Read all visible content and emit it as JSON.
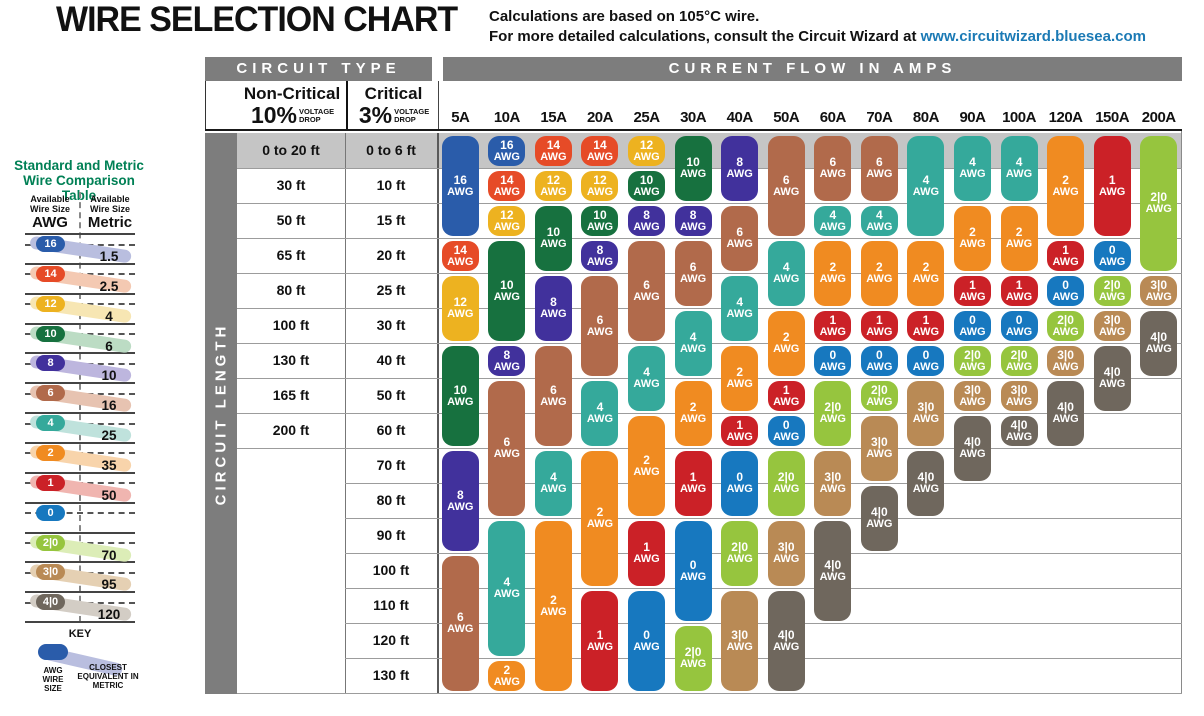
{
  "header": {
    "title": "WIRE SELECTION CHART",
    "note_line1": "Calculations are based on 105°C wire.",
    "note_line2_prefix": "For more detailed calculations, consult the Circuit Wizard at ",
    "note_link": "www.circuitwizard.bluesea.com"
  },
  "table_headers": {
    "circuit_type": "CIRCUIT TYPE",
    "current_flow": "CURRENT FLOW IN AMPS",
    "circuit_length": "CIRCUIT LENGTH",
    "non_critical": {
      "name": "Non-Critical",
      "pct": "10%",
      "sub": "VOLTAGE DROP"
    },
    "critical": {
      "name": "Critical",
      "pct": "3%",
      "sub": "VOLTAGE DROP"
    }
  },
  "chart_data": {
    "type": "table",
    "title": "WIRE SELECTION CHART",
    "unit_suffix": "AWG",
    "amp_columns": [
      "5A",
      "10A",
      "15A",
      "20A",
      "25A",
      "30A",
      "40A",
      "50A",
      "60A",
      "70A",
      "80A",
      "90A",
      "100A",
      "120A",
      "150A",
      "200A"
    ],
    "row_labels_non_critical_10pct": [
      "0 to 20 ft",
      "30 ft",
      "50 ft",
      "65 ft",
      "80 ft",
      "100 ft",
      "130 ft",
      "165 ft",
      "200 ft"
    ],
    "row_labels_critical_3pct": [
      "0 to 6 ft",
      "10 ft",
      "15 ft",
      "20 ft",
      "25 ft",
      "30 ft",
      "40 ft",
      "50 ft",
      "60 ft",
      "70 ft",
      "80 ft",
      "90 ft",
      "100 ft",
      "110 ft",
      "120 ft",
      "130 ft"
    ],
    "columns": [
      {
        "amps": "5A",
        "segments": [
          {
            "awg": "16",
            "rows": [
              1,
              3
            ]
          },
          {
            "awg": "14",
            "rows": [
              4,
              4
            ]
          },
          {
            "awg": "12",
            "rows": [
              5,
              6
            ]
          },
          {
            "awg": "10",
            "rows": [
              7,
              9
            ]
          },
          {
            "awg": "8",
            "rows": [
              10,
              12
            ]
          },
          {
            "awg": "6",
            "rows": [
              13,
              16
            ]
          }
        ]
      },
      {
        "amps": "10A",
        "segments": [
          {
            "awg": "16",
            "rows": [
              1,
              1
            ]
          },
          {
            "awg": "14",
            "rows": [
              2,
              2
            ]
          },
          {
            "awg": "12",
            "rows": [
              3,
              3
            ]
          },
          {
            "awg": "10",
            "rows": [
              4,
              6
            ]
          },
          {
            "awg": "8",
            "rows": [
              7,
              7
            ]
          },
          {
            "awg": "6",
            "rows": [
              8,
              11
            ]
          },
          {
            "awg": "4",
            "rows": [
              12,
              15
            ]
          },
          {
            "awg": "2",
            "rows": [
              16,
              16
            ]
          }
        ]
      },
      {
        "amps": "15A",
        "segments": [
          {
            "awg": "14",
            "rows": [
              1,
              1
            ]
          },
          {
            "awg": "12",
            "rows": [
              2,
              2
            ]
          },
          {
            "awg": "10",
            "rows": [
              3,
              4
            ]
          },
          {
            "awg": "8",
            "rows": [
              5,
              6
            ]
          },
          {
            "awg": "6",
            "rows": [
              7,
              9
            ]
          },
          {
            "awg": "4",
            "rows": [
              10,
              11
            ]
          },
          {
            "awg": "2",
            "rows": [
              12,
              16
            ]
          }
        ]
      },
      {
        "amps": "20A",
        "segments": [
          {
            "awg": "14",
            "rows": [
              1,
              1
            ]
          },
          {
            "awg": "12",
            "rows": [
              2,
              2
            ]
          },
          {
            "awg": "10",
            "rows": [
              3,
              3
            ]
          },
          {
            "awg": "8",
            "rows": [
              4,
              4
            ]
          },
          {
            "awg": "6",
            "rows": [
              5,
              7
            ]
          },
          {
            "awg": "4",
            "rows": [
              8,
              9
            ]
          },
          {
            "awg": "2",
            "rows": [
              10,
              13
            ]
          },
          {
            "awg": "1",
            "rows": [
              14,
              16
            ]
          }
        ]
      },
      {
        "amps": "25A",
        "segments": [
          {
            "awg": "12",
            "rows": [
              1,
              1
            ]
          },
          {
            "awg": "10",
            "rows": [
              2,
              2
            ]
          },
          {
            "awg": "8",
            "rows": [
              3,
              3
            ]
          },
          {
            "awg": "6",
            "rows": [
              4,
              6
            ]
          },
          {
            "awg": "4",
            "rows": [
              7,
              8
            ]
          },
          {
            "awg": "2",
            "rows": [
              9,
              11
            ]
          },
          {
            "awg": "1",
            "rows": [
              12,
              13
            ]
          },
          {
            "awg": "0",
            "rows": [
              14,
              16
            ]
          }
        ]
      },
      {
        "amps": "30A",
        "segments": [
          {
            "awg": "10",
            "rows": [
              1,
              2
            ]
          },
          {
            "awg": "8",
            "rows": [
              3,
              3
            ]
          },
          {
            "awg": "6",
            "rows": [
              4,
              5
            ]
          },
          {
            "awg": "4",
            "rows": [
              6,
              7
            ]
          },
          {
            "awg": "2",
            "rows": [
              8,
              9
            ]
          },
          {
            "awg": "1",
            "rows": [
              10,
              11
            ]
          },
          {
            "awg": "0",
            "rows": [
              12,
              14
            ]
          },
          {
            "awg": "2|0",
            "rows": [
              15,
              16
            ]
          }
        ]
      },
      {
        "amps": "40A",
        "segments": [
          {
            "awg": "8",
            "rows": [
              1,
              2
            ]
          },
          {
            "awg": "6",
            "rows": [
              3,
              4
            ]
          },
          {
            "awg": "4",
            "rows": [
              5,
              6
            ]
          },
          {
            "awg": "2",
            "rows": [
              7,
              8
            ]
          },
          {
            "awg": "1",
            "rows": [
              9,
              9
            ]
          },
          {
            "awg": "0",
            "rows": [
              10,
              11
            ]
          },
          {
            "awg": "2|0",
            "rows": [
              12,
              13
            ]
          },
          {
            "awg": "3|0",
            "rows": [
              14,
              16
            ]
          }
        ]
      },
      {
        "amps": "50A",
        "segments": [
          {
            "awg": "6",
            "rows": [
              1,
              3
            ]
          },
          {
            "awg": "4",
            "rows": [
              4,
              5
            ]
          },
          {
            "awg": "2",
            "rows": [
              6,
              7
            ]
          },
          {
            "awg": "1",
            "rows": [
              8,
              8
            ]
          },
          {
            "awg": "0",
            "rows": [
              9,
              9
            ]
          },
          {
            "awg": "2|0",
            "rows": [
              10,
              11
            ]
          },
          {
            "awg": "3|0",
            "rows": [
              12,
              13
            ]
          },
          {
            "awg": "4|0",
            "rows": [
              14,
              16
            ]
          }
        ]
      },
      {
        "amps": "60A",
        "segments": [
          {
            "awg": "6",
            "rows": [
              1,
              2
            ]
          },
          {
            "awg": "4",
            "rows": [
              3,
              3
            ]
          },
          {
            "awg": "2",
            "rows": [
              4,
              5
            ]
          },
          {
            "awg": "1",
            "rows": [
              6,
              6
            ]
          },
          {
            "awg": "0",
            "rows": [
              7,
              7
            ]
          },
          {
            "awg": "2|0",
            "rows": [
              8,
              9
            ]
          },
          {
            "awg": "3|0",
            "rows": [
              10,
              11
            ]
          },
          {
            "awg": "4|0",
            "rows": [
              12,
              14
            ]
          }
        ]
      },
      {
        "amps": "70A",
        "segments": [
          {
            "awg": "6",
            "rows": [
              1,
              2
            ]
          },
          {
            "awg": "4",
            "rows": [
              3,
              3
            ]
          },
          {
            "awg": "2",
            "rows": [
              4,
              5
            ]
          },
          {
            "awg": "1",
            "rows": [
              6,
              6
            ]
          },
          {
            "awg": "0",
            "rows": [
              7,
              7
            ]
          },
          {
            "awg": "2|0",
            "rows": [
              8,
              8
            ]
          },
          {
            "awg": "3|0",
            "rows": [
              9,
              10
            ]
          },
          {
            "awg": "4|0",
            "rows": [
              11,
              12
            ]
          }
        ]
      },
      {
        "amps": "80A",
        "segments": [
          {
            "awg": "4",
            "rows": [
              1,
              3
            ]
          },
          {
            "awg": "2",
            "rows": [
              4,
              5
            ]
          },
          {
            "awg": "1",
            "rows": [
              6,
              6
            ]
          },
          {
            "awg": "0",
            "rows": [
              7,
              7
            ]
          },
          {
            "awg": "3|0",
            "rows": [
              8,
              9
            ]
          },
          {
            "awg": "4|0",
            "rows": [
              10,
              11
            ]
          }
        ]
      },
      {
        "amps": "90A",
        "segments": [
          {
            "awg": "4",
            "rows": [
              1,
              2
            ]
          },
          {
            "awg": "2",
            "rows": [
              3,
              4
            ]
          },
          {
            "awg": "1",
            "rows": [
              5,
              5
            ]
          },
          {
            "awg": "0",
            "rows": [
              6,
              6
            ]
          },
          {
            "awg": "2|0",
            "rows": [
              7,
              7
            ]
          },
          {
            "awg": "3|0",
            "rows": [
              8,
              8
            ]
          },
          {
            "awg": "4|0",
            "rows": [
              9,
              10
            ]
          }
        ]
      },
      {
        "amps": "100A",
        "segments": [
          {
            "awg": "4",
            "rows": [
              1,
              2
            ]
          },
          {
            "awg": "2",
            "rows": [
              3,
              4
            ]
          },
          {
            "awg": "1",
            "rows": [
              5,
              5
            ]
          },
          {
            "awg": "0",
            "rows": [
              6,
              6
            ]
          },
          {
            "awg": "2|0",
            "rows": [
              7,
              7
            ]
          },
          {
            "awg": "3|0",
            "rows": [
              8,
              8
            ]
          },
          {
            "awg": "4|0",
            "rows": [
              9,
              9
            ]
          }
        ]
      },
      {
        "amps": "120A",
        "segments": [
          {
            "awg": "2",
            "rows": [
              1,
              3
            ]
          },
          {
            "awg": "1",
            "rows": [
              4,
              4
            ]
          },
          {
            "awg": "0",
            "rows": [
              5,
              5
            ]
          },
          {
            "awg": "2|0",
            "rows": [
              6,
              6
            ]
          },
          {
            "awg": "3|0",
            "rows": [
              7,
              7
            ]
          },
          {
            "awg": "4|0",
            "rows": [
              8,
              9
            ]
          }
        ]
      },
      {
        "amps": "150A",
        "segments": [
          {
            "awg": "1",
            "rows": [
              1,
              3
            ]
          },
          {
            "awg": "0",
            "rows": [
              4,
              4
            ]
          },
          {
            "awg": "2|0",
            "rows": [
              5,
              5
            ]
          },
          {
            "awg": "3|0",
            "rows": [
              6,
              6
            ]
          },
          {
            "awg": "4|0",
            "rows": [
              7,
              8
            ]
          }
        ]
      },
      {
        "amps": "200A",
        "segments": [
          {
            "awg": "2|0",
            "rows": [
              1,
              4
            ]
          },
          {
            "awg": "3|0",
            "rows": [
              5,
              5
            ]
          },
          {
            "awg": "4|0",
            "rows": [
              6,
              7
            ]
          }
        ]
      }
    ]
  },
  "awg_colors": {
    "16": "#2a5caa",
    "14": "#e64b27",
    "12": "#edb220",
    "10": "#17713f",
    "8": "#41319c",
    "6": "#b16a4b",
    "4": "#35a99b",
    "2": "#f08b21",
    "1": "#cb2127",
    "0": "#1778bf",
    "2|0": "#96c53e",
    "3|0": "#b98a55",
    "4|0": "#6f675d"
  },
  "sidebar": {
    "title_line1": "Standard and Metric",
    "title_line2": "Wire Comparison Table",
    "col1_header": {
      "l1": "Available",
      "l2": "Wire Size",
      "l3": "AWG"
    },
    "col2_header": {
      "l1": "Available",
      "l2": "Wire Size",
      "l3": "Metric"
    },
    "rows": [
      {
        "awg": "16",
        "metric": "1.5",
        "color": "#2a5caa",
        "band": "#b9bedf"
      },
      {
        "awg": "14",
        "metric": "2.5",
        "color": "#e64b27",
        "band": "#f4c9b2"
      },
      {
        "awg": "12",
        "metric": "4",
        "color": "#edb220",
        "band": "#f7e6b3"
      },
      {
        "awg": "10",
        "metric": "6",
        "color": "#17713f",
        "band": "#bcdcc4"
      },
      {
        "awg": "8",
        "metric": "10",
        "color": "#41319c",
        "band": "#bdb6de"
      },
      {
        "awg": "6",
        "metric": "16",
        "color": "#b16a4b",
        "band": "#e7c3b1"
      },
      {
        "awg": "4",
        "metric": "25",
        "color": "#35a99b",
        "band": "#bfe2dc"
      },
      {
        "awg": "2",
        "metric": "35",
        "color": "#f08b21",
        "band": "#f8d4ab"
      },
      {
        "awg": "1",
        "metric": "50",
        "color": "#cb2127",
        "band": "#f0b5b0"
      },
      {
        "awg": "0",
        "metric": "",
        "color": "#1778bf",
        "band": ""
      },
      {
        "awg": "2|0",
        "metric": "70",
        "color": "#96c53e",
        "band": "#dcedb7"
      },
      {
        "awg": "3|0",
        "metric": "95",
        "color": "#b98a55",
        "band": "#e5d0b3"
      },
      {
        "awg": "4|0",
        "metric": "120",
        "color": "#6f675d",
        "band": "#d3cdc5"
      }
    ],
    "key": {
      "title": "KEY",
      "pill_label": "AWG WIRE SIZE",
      "band_label": "CLOSEST EQUIVALENT IN METRIC",
      "pill_color": "#2a5caa",
      "band_color": "#b9bedf"
    }
  },
  "ui_colors": {
    "bar_gray": "#7d7d7d",
    "row1_band": "#c5c5c5",
    "grid_line": "#9c9c9c",
    "link_blue": "#1b7ab5",
    "sidebar_title_green": "#008055"
  }
}
